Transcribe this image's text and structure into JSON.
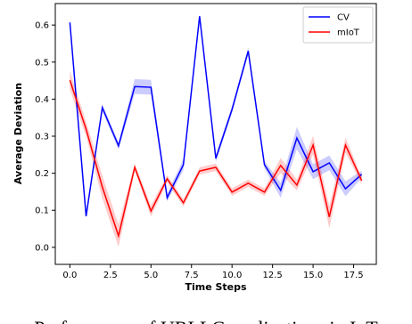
{
  "chart_data": {
    "type": "line",
    "x_label": "Time Steps",
    "y_label": "Average Deviation",
    "caption": "Performance of URLLC applications in IoT",
    "x": [
      0,
      1,
      2,
      3,
      4,
      5,
      6,
      7,
      8,
      9,
      10,
      11,
      12,
      13,
      14,
      15,
      16,
      17,
      18
    ],
    "series": [
      {
        "name": "CV",
        "color": "#0000ff",
        "values": [
          0.607,
          0.084,
          0.377,
          0.274,
          0.434,
          0.432,
          0.134,
          0.223,
          0.624,
          0.24,
          0.372,
          0.53,
          0.223,
          0.154,
          0.295,
          0.204,
          0.228,
          0.158,
          0.197
        ],
        "lower": [
          0.602,
          0.079,
          0.367,
          0.264,
          0.414,
          0.412,
          0.124,
          0.208,
          0.619,
          0.23,
          0.362,
          0.52,
          0.213,
          0.134,
          0.265,
          0.184,
          0.208,
          0.138,
          0.187
        ],
        "upper": [
          0.612,
          0.089,
          0.387,
          0.284,
          0.454,
          0.452,
          0.144,
          0.238,
          0.629,
          0.25,
          0.382,
          0.54,
          0.233,
          0.174,
          0.325,
          0.224,
          0.248,
          0.178,
          0.207
        ]
      },
      {
        "name": "mIoT",
        "color": "#ff0000",
        "values": [
          0.451,
          0.319,
          0.163,
          0.031,
          0.216,
          0.098,
          0.185,
          0.12,
          0.206,
          0.216,
          0.149,
          0.173,
          0.149,
          0.221,
          0.168,
          0.276,
          0.082,
          0.276,
          0.18
        ],
        "lower": [
          0.426,
          0.299,
          0.133,
          0.001,
          0.206,
          0.083,
          0.175,
          0.11,
          0.196,
          0.206,
          0.139,
          0.163,
          0.139,
          0.201,
          0.153,
          0.251,
          0.052,
          0.256,
          0.17
        ],
        "upper": [
          0.476,
          0.339,
          0.193,
          0.061,
          0.226,
          0.113,
          0.195,
          0.13,
          0.216,
          0.226,
          0.159,
          0.183,
          0.159,
          0.241,
          0.183,
          0.301,
          0.112,
          0.296,
          0.19
        ]
      }
    ],
    "xlim": [
      -0.9,
      18.9
    ],
    "xticks": [
      {
        "value": 0,
        "label": "0.0"
      },
      2.5,
      {
        "value": 5,
        "label": "5.0"
      },
      7.5,
      {
        "value": 10,
        "label": "10.0"
      },
      12.5,
      {
        "value": 15,
        "label": "15.0"
      },
      17.5
    ],
    "ylim": [
      -0.046,
      0.658
    ],
    "yticks": [
      {
        "value": 0,
        "label": "0.0"
      },
      0.1,
      0.2,
      0.3,
      0.4,
      0.5,
      0.6
    ],
    "legend": "upper right",
    "grid": false
  }
}
